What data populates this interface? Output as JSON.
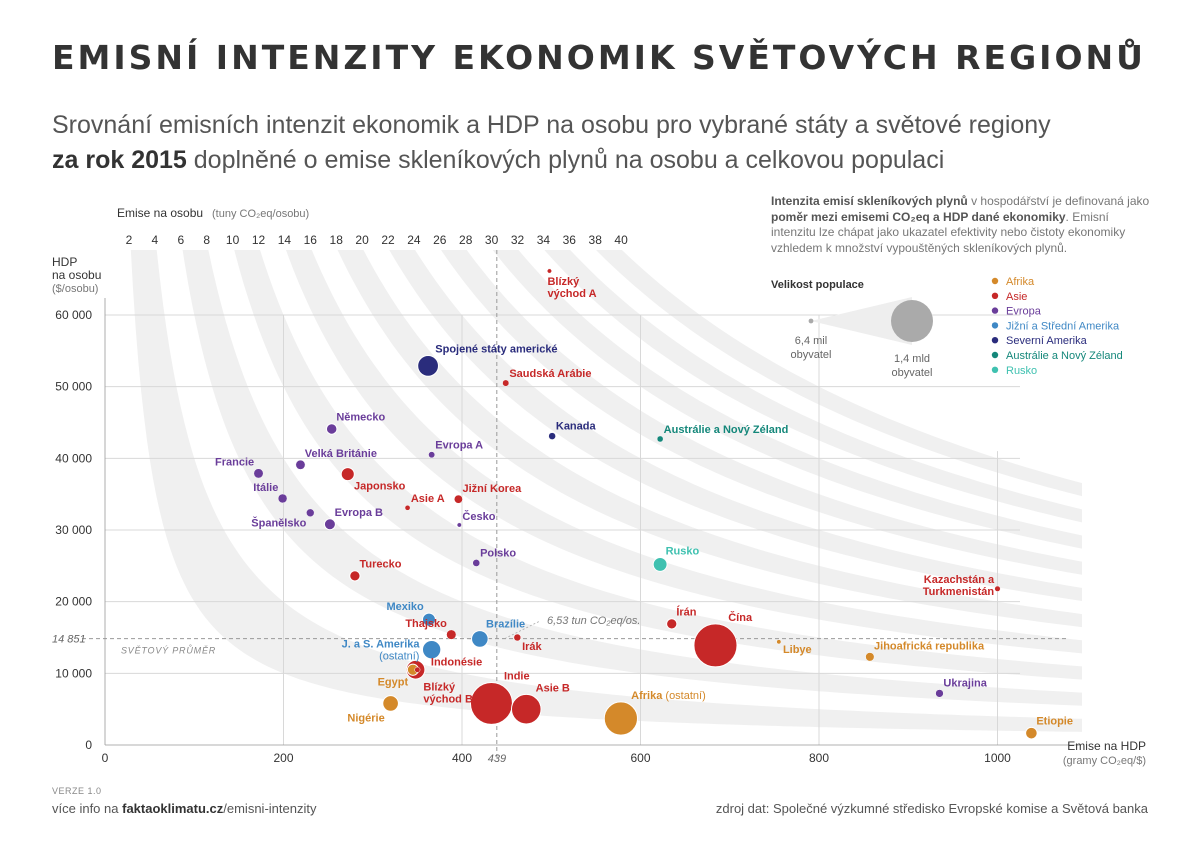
{
  "header": {
    "title": "EMISNÍ INTENZITY EKONOMIK SVĚTOVÝCH REGIONŮ",
    "subtitle_line1": "Srovnání emisních intenzit ekonomik a HDP na osobu pro vybrané státy a světové regiony",
    "subtitle_year_bold": "za rok 2015",
    "subtitle_line2_rest": " doplněné o emise skleníkových plynů na osobu a celkovou populaci"
  },
  "info": {
    "bold1": "Intenzita emisí skleníkových plynů",
    "text1": " v hospodářství je definovaná jako ",
    "bold2": "poměr mezi emisemi CO₂eq a HDP dané ekonomiky",
    "text2": ". Emisní intenzitu lze chápat jako ukazatel efektivity nebo čistoty ekonomiky vzhledem k množství vypouštěných skleníkových plynů."
  },
  "legend": {
    "size_title": "Velikost populace",
    "small_label_1": "6,4 mil",
    "small_label_2": "obyvatel",
    "large_label_1": "1,4 mld",
    "large_label_2": "obyvatel",
    "regions": [
      {
        "name": "Afrika",
        "color": "#D4892A"
      },
      {
        "name": "Asie",
        "color": "#C62828"
      },
      {
        "name": "Evropa",
        "color": "#6A3D9A"
      },
      {
        "name": "Jižní a Střední Amerika",
        "color": "#3F88C5"
      },
      {
        "name": "Severní Amerika",
        "color": "#2A2C7C"
      },
      {
        "name": "Austrálie a Nový Zéland",
        "color": "#14877A"
      },
      {
        "name": "Rusko",
        "color": "#3FC1B0"
      }
    ]
  },
  "footer": {
    "version": "VERZE 1.0",
    "more_info_prefix": "více info na ",
    "more_info_domain": "faktaoklimatu.cz",
    "more_info_path": "/emisni-intenzity",
    "source": "zdroj dat: Společné výzkumné středisko Evropské komise a Světová banka"
  },
  "chart_data": {
    "type": "scatter",
    "xlabel": "Emise na HDP",
    "xlabel_unit": "(gramy CO₂eq/$)",
    "ylabel_line1": "HDP",
    "ylabel_line2": "na osobu",
    "ylabel_unit": "($/osobu)",
    "top_axis_label": "Emise na osobu",
    "top_axis_unit": "(tuny CO₂eq/osobu)",
    "top_ticks": [
      2,
      4,
      6,
      8,
      10,
      12,
      14,
      16,
      18,
      20,
      22,
      24,
      26,
      28,
      30,
      32,
      34,
      36,
      38,
      40
    ],
    "xlim": [
      0,
      1050
    ],
    "ylim": [
      0,
      62000
    ],
    "x_ticks": [
      0,
      200,
      400,
      600,
      800,
      1000
    ],
    "x_tick_labels": [
      "0",
      "200",
      "400",
      "600",
      "800",
      "1000"
    ],
    "y_ticks": [
      0,
      10000,
      20000,
      30000,
      40000,
      50000,
      60000
    ],
    "y_tick_labels": [
      "0",
      "10 000",
      "20 000",
      "30 000",
      "40 000",
      "50 000",
      "60 000"
    ],
    "world_avg_x": 439,
    "world_avg_x_label": "439",
    "world_avg_y": 14851,
    "world_avg_y_label": "14 851",
    "world_avg_text": "SVĚTOVÝ PRŮMĚR",
    "world_avg_per_capita_label": "6,53 tun CO₂eq/os.",
    "grid": true,
    "points": [
      {
        "name": "Spojené státy americké",
        "region": "Severní Amerika",
        "x": 362,
        "y": 52900,
        "pop": 321,
        "label_pos": "top-right",
        "label_lines": [
          "Spojené státy americké"
        ]
      },
      {
        "name": "Blízký východ A",
        "region": "Asie",
        "x": 498,
        "y": 66000,
        "pop": 12,
        "label_pos": "below",
        "label_lines": [
          "Blízký",
          "východ A"
        ]
      },
      {
        "name": "Saudská Arábie",
        "region": "Asie",
        "x": 449,
        "y": 50500,
        "pop": 31,
        "label_pos": "top-right",
        "label_lines": [
          "Saudská Arábie"
        ]
      },
      {
        "name": "Kanada",
        "region": "Severní Amerika",
        "x": 501,
        "y": 43100,
        "pop": 36,
        "label_pos": "top-right",
        "label_lines": [
          "Kanada"
        ]
      },
      {
        "name": "Austrálie a Nový Zéland",
        "region": "Austrálie a Nový Zéland",
        "x": 622,
        "y": 42700,
        "pop": 28,
        "label_pos": "top-right",
        "label_lines": [
          "Austrálie a Nový Zéland"
        ]
      },
      {
        "name": "Německo",
        "region": "Evropa",
        "x": 254,
        "y": 44100,
        "pop": 82,
        "label_pos": "top-right",
        "label_lines": [
          "Německo"
        ]
      },
      {
        "name": "Evropa A",
        "region": "Evropa",
        "x": 366,
        "y": 40500,
        "pop": 30,
        "label_pos": "top-right",
        "label_lines": [
          "Evropa A"
        ]
      },
      {
        "name": "Francie",
        "region": "Evropa",
        "x": 172,
        "y": 37900,
        "pop": 66,
        "label_pos": "top-left",
        "label_lines": [
          "Francie"
        ]
      },
      {
        "name": "Velká Británie",
        "region": "Evropa",
        "x": 219,
        "y": 39100,
        "pop": 65,
        "label_pos": "top-right",
        "label_lines": [
          "Velká Británie"
        ]
      },
      {
        "name": "Japonsko",
        "region": "Asie",
        "x": 272,
        "y": 37800,
        "pop": 127,
        "label_pos": "bottom-right",
        "label_lines": [
          "Japonsko"
        ]
      },
      {
        "name": "Itálie",
        "region": "Evropa",
        "x": 199,
        "y": 34400,
        "pop": 60,
        "label_pos": "top-left",
        "label_lines": [
          "Itálie"
        ]
      },
      {
        "name": "Asie A",
        "region": "Asie",
        "x": 339,
        "y": 33100,
        "pop": 20,
        "label_pos": "top-right",
        "label_lines": [
          "Asie A"
        ]
      },
      {
        "name": "Jižní Korea",
        "region": "Asie",
        "x": 396,
        "y": 34300,
        "pop": 51,
        "label_pos": "top-right",
        "label_lines": [
          "Jižní Korea"
        ]
      },
      {
        "name": "Španělsko",
        "region": "Evropa",
        "x": 230,
        "y": 32400,
        "pop": 46,
        "label_pos": "bottom-left",
        "label_lines": [
          "Španělsko"
        ]
      },
      {
        "name": "Evropa B",
        "region": "Evropa",
        "x": 252,
        "y": 30800,
        "pop": 90,
        "label_pos": "top-right",
        "label_lines": [
          "Evropa B"
        ]
      },
      {
        "name": "Česko",
        "region": "Evropa",
        "x": 397,
        "y": 30700,
        "pop": 10.5,
        "label_pos": "top-right",
        "label_lines": [
          "Česko"
        ]
      },
      {
        "name": "Polsko",
        "region": "Evropa",
        "x": 416,
        "y": 25400,
        "pop": 38,
        "label_pos": "top-right",
        "label_lines": [
          "Polsko"
        ]
      },
      {
        "name": "Rusko",
        "region": "Rusko",
        "x": 622,
        "y": 25200,
        "pop": 144,
        "label_pos": "top-right",
        "label_lines": [
          "Rusko"
        ]
      },
      {
        "name": "Turecko",
        "region": "Asie",
        "x": 280,
        "y": 23600,
        "pop": 79,
        "label_pos": "top-right",
        "label_lines": [
          "Turecko"
        ]
      },
      {
        "name": "Kazachstán a Turkmenistán",
        "region": "Asie",
        "x": 1000,
        "y": 21800,
        "pop": 23,
        "label_pos": "top-left",
        "label_lines": [
          "Kazachstán a",
          "Turkmenistán"
        ]
      },
      {
        "name": "Mexiko",
        "region": "Jižní a Střední Amerika",
        "x": 363,
        "y": 17500,
        "pop": 125,
        "label_pos": "top-left",
        "label_lines": [
          "Mexiko"
        ]
      },
      {
        "name": "Thajsko",
        "region": "Asie",
        "x": 388,
        "y": 15400,
        "pop": 68,
        "label_pos": "top-left",
        "label_lines": [
          "Thajsko"
        ]
      },
      {
        "name": "Brazílie",
        "region": "Jižní a Střední Amerika",
        "x": 420,
        "y": 14800,
        "pop": 205,
        "label_pos": "top-right",
        "label_lines": [
          "Brazílie"
        ]
      },
      {
        "name": "Irák",
        "region": "Asie",
        "x": 462,
        "y": 15000,
        "pop": 36,
        "label_pos": "bottom-right",
        "label_lines": [
          "Irák"
        ]
      },
      {
        "name": "J. a S. Amerika (ostatní)",
        "region": "Jižní a Střední Amerika",
        "x": 366,
        "y": 13300,
        "pop": 250,
        "label_pos": "left",
        "label_lines": [
          "J. a S. Amerika",
          "(ostatní)"
        ]
      },
      {
        "name": "Írán",
        "region": "Asie",
        "x": 635,
        "y": 16900,
        "pop": 79,
        "label_pos": "top-right",
        "label_lines": [
          "Írán"
        ]
      },
      {
        "name": "Čína",
        "region": "Asie",
        "x": 684,
        "y": 13900,
        "pop": 1380,
        "label_pos": "top-right",
        "label_lines": [
          "Čína"
        ]
      },
      {
        "name": "Libye",
        "region": "Afrika",
        "x": 755,
        "y": 14400,
        "pop": 6.4,
        "label_pos": "bottom-right",
        "label_lines": [
          "Libye"
        ]
      },
      {
        "name": "Jihoafrická republika",
        "region": "Afrika",
        "x": 857,
        "y": 12300,
        "pop": 55,
        "label_pos": "top-right",
        "label_lines": [
          "Jihoafrická republika"
        ]
      },
      {
        "name": "Egypt",
        "region": "Afrika",
        "x": 345,
        "y": 10500,
        "pop": 92,
        "label_pos": "bottom-left",
        "label_lines": [
          "Egypt"
        ]
      },
      {
        "name": "Indonésie",
        "region": "Asie",
        "x": 348,
        "y": 10500,
        "pop": 258,
        "label_pos": "right",
        "label_lines": [
          "Indonésie"
        ]
      },
      {
        "name": "Blízký východ B",
        "region": "Asie",
        "x": 350,
        "y": 10500,
        "pop": 22,
        "label_pos": "below-right",
        "label_lines": [
          "Blízký",
          "východ B"
        ]
      },
      {
        "name": "Nigérie",
        "region": "Afrika",
        "x": 320,
        "y": 5800,
        "pop": 182,
        "label_pos": "bottom-left",
        "label_lines": [
          "Nigérie"
        ]
      },
      {
        "name": "Indie",
        "region": "Asie",
        "x": 433,
        "y": 5800,
        "pop": 1310,
        "label_pos": "top-right",
        "label_lines": [
          "Indie"
        ]
      },
      {
        "name": "Asie B",
        "region": "Asie",
        "x": 472,
        "y": 5000,
        "pop": 650,
        "label_pos": "top-right",
        "label_lines": [
          "Asie B"
        ]
      },
      {
        "name": "Afrika (ostatní)",
        "region": "Afrika",
        "x": 578,
        "y": 3700,
        "pop": 820,
        "label_pos": "top-right",
        "label_lines": [
          "Afrika"
        ],
        "label_suffix": "(ostatní)"
      },
      {
        "name": "Ukrajina",
        "region": "Evropa",
        "x": 935,
        "y": 7200,
        "pop": 45,
        "label_pos": "top-right",
        "label_lines": [
          "Ukrajina"
        ]
      },
      {
        "name": "Etiopie",
        "region": "Afrika",
        "x": 1038,
        "y": 1650,
        "pop": 100,
        "label_pos": "top-right",
        "label_lines": [
          "Etiopie"
        ]
      }
    ]
  }
}
